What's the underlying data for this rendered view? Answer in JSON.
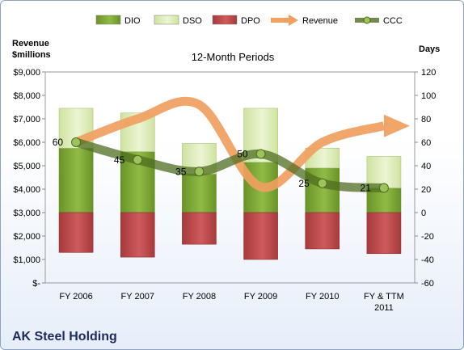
{
  "chart_data": {
    "type": "bar",
    "title": "12-Month Periods",
    "company": "AK Steel Holding",
    "ylabel_left": "Revenue $millions",
    "ylabel_right": "Days",
    "categories": [
      "FY 2006",
      "FY 2007",
      "FY 2008",
      "FY 2009",
      "FY 2010",
      "FY & TTM 2011"
    ],
    "y_left": {
      "min": 0,
      "max": 9000,
      "step": 1000
    },
    "y_right": {
      "min": -60,
      "max": 120,
      "step": 20
    },
    "y_left_tick_labels": [
      "$-",
      "$1,000",
      "$2,000",
      "$3,000",
      "$4,000",
      "$5,000",
      "$6,000",
      "$7,000",
      "$8,000",
      "$9,000"
    ],
    "legend_position": "top",
    "series": [
      {
        "name": "DIO",
        "kind": "bar-stack",
        "axis": "right",
        "values": [
          55,
          52,
          33,
          43,
          38,
          21
        ],
        "color": "#7aa332"
      },
      {
        "name": "DSO",
        "kind": "bar-stack",
        "axis": "right",
        "values": [
          34,
          33,
          26,
          46,
          17,
          27
        ],
        "color": "#dcebb3"
      },
      {
        "name": "DPO",
        "kind": "bar-negative",
        "axis": "right",
        "values": [
          -34,
          -38,
          -27,
          -40,
          -31,
          -35
        ],
        "color": "#c0494b"
      },
      {
        "name": "Revenue",
        "kind": "arrow-line",
        "axis": "left",
        "values": [
          6000,
          7000,
          7600,
          4100,
          6000,
          6700
        ],
        "color": "#f0a060"
      },
      {
        "name": "CCC",
        "kind": "line",
        "axis": "right",
        "values": [
          60,
          45,
          35,
          50,
          25,
          21
        ],
        "color": "#5a7a2a"
      }
    ],
    "data_labels": [
      "60",
      "45",
      "35",
      "50",
      "25",
      "21"
    ]
  }
}
